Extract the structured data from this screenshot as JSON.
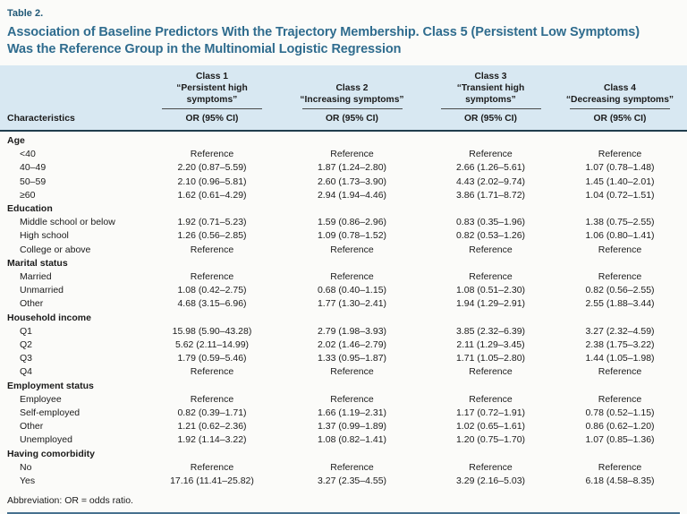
{
  "page": {
    "table_label": "Table 2.",
    "title_lines": [
      "Association of Baseline Predictors With the Trajectory Membership. Class 5 (Persistent Low Symptoms)",
      "Was the Reference Group in the Multinomial Logistic Regression"
    ],
    "footnote": "Abbreviation: OR = odds ratio."
  },
  "colors": {
    "title_teal": "#2f6c8e",
    "header_background": "#d8e8f2",
    "header_heavy_rule": "#203d4d",
    "bottom_rule_blue": "#47718f"
  },
  "table": {
    "characteristics_header": "Characteristics",
    "or_header": "OR (95% CI)",
    "class_headers": [
      {
        "name": "Class 1",
        "subtitle": "“Persistent high symptoms”"
      },
      {
        "name": "Class 2",
        "subtitle": "“Increasing symptoms”"
      },
      {
        "name": "Class 3",
        "subtitle": "“Transient high symptoms”"
      },
      {
        "name": "Class 4",
        "subtitle": "“Decreasing symptoms”"
      }
    ],
    "sections": [
      {
        "label": "Age",
        "rows": [
          {
            "label": "<40",
            "values": [
              "Reference",
              "Reference",
              "Reference",
              "Reference"
            ]
          },
          {
            "label": "40–49",
            "values": [
              "2.20 (0.87–5.59)",
              "1.87 (1.24–2.80)",
              "2.66 (1.26–5.61)",
              "1.07 (0.78–1.48)"
            ]
          },
          {
            "label": "50–59",
            "values": [
              "2.10 (0.96–5.81)",
              "2.60 (1.73–3.90)",
              "4.43 (2.02–9.74)",
              "1.45 (1.40–2.01)"
            ]
          },
          {
            "label": "≥60",
            "values": [
              "1.62 (0.61–4.29)",
              "2.94 (1.94–4.46)",
              "3.86 (1.71–8.72)",
              "1.04 (0.72–1.51)"
            ]
          }
        ]
      },
      {
        "label": "Education",
        "rows": [
          {
            "label": "Middle school or below",
            "values": [
              "1.92 (0.71–5.23)",
              "1.59 (0.86–2.96)",
              "0.83 (0.35–1.96)",
              "1.38 (0.75–2.55)"
            ]
          },
          {
            "label": "High school",
            "values": [
              "1.26 (0.56–2.85)",
              "1.09 (0.78–1.52)",
              "0.82 (0.53–1.26)",
              "1.06 (0.80–1.41)"
            ]
          },
          {
            "label": "College or above",
            "values": [
              "Reference",
              "Reference",
              "Reference",
              "Reference"
            ]
          }
        ]
      },
      {
        "label": "Marital status",
        "rows": [
          {
            "label": "Married",
            "values": [
              "Reference",
              "Reference",
              "Reference",
              "Reference"
            ]
          },
          {
            "label": "Unmarried",
            "values": [
              "1.08 (0.42–2.75)",
              "0.68 (0.40–1.15)",
              "1.08 (0.51–2.30)",
              "0.82 (0.56–2.55)"
            ]
          },
          {
            "label": "Other",
            "values": [
              "4.68 (3.15–6.96)",
              "1.77 (1.30–2.41)",
              "1.94 (1.29–2.91)",
              "2.55 (1.88–3.44)"
            ]
          }
        ]
      },
      {
        "label": "Household income",
        "rows": [
          {
            "label": "Q1",
            "values": [
              "15.98 (5.90–43.28)",
              "2.79 (1.98–3.93)",
              "3.85 (2.32–6.39)",
              "3.27 (2.32–4.59)"
            ]
          },
          {
            "label": "Q2",
            "values": [
              "5.62 (2.11–14.99)",
              "2.02 (1.46–2.79)",
              "2.11 (1.29–3.45)",
              "2.38 (1.75–3.22)"
            ]
          },
          {
            "label": "Q3",
            "values": [
              "1.79 (0.59–5.46)",
              "1.33 (0.95–1.87)",
              "1.71 (1.05–2.80)",
              "1.44 (1.05–1.98)"
            ]
          },
          {
            "label": "Q4",
            "values": [
              "Reference",
              "Reference",
              "Reference",
              "Reference"
            ]
          }
        ]
      },
      {
        "label": "Employment status",
        "rows": [
          {
            "label": "Employee",
            "values": [
              "Reference",
              "Reference",
              "Reference",
              "Reference"
            ]
          },
          {
            "label": "Self-employed",
            "values": [
              "0.82 (0.39–1.71)",
              "1.66 (1.19–2.31)",
              "1.17 (0.72–1.91)",
              "0.78 (0.52–1.15)"
            ]
          },
          {
            "label": "Other",
            "values": [
              "1.21 (0.62–2.36)",
              "1.37 (0.99–1.89)",
              "1.02 (0.65–1.61)",
              "0.86 (0.62–1.20)"
            ]
          },
          {
            "label": "Unemployed",
            "values": [
              "1.92 (1.14–3.22)",
              "1.08 (0.82–1.41)",
              "1.20 (0.75–1.70)",
              "1.07 (0.85–1.36)"
            ]
          }
        ]
      },
      {
        "label": "Having comorbidity",
        "rows": [
          {
            "label": "No",
            "values": [
              "Reference",
              "Reference",
              "Reference",
              "Reference"
            ]
          },
          {
            "label": "Yes",
            "values": [
              "17.16 (11.41–25.82)",
              "3.27 (2.35–4.55)",
              "3.29 (2.16–5.03)",
              "6.18 (4.58–8.35)"
            ]
          }
        ]
      }
    ]
  }
}
